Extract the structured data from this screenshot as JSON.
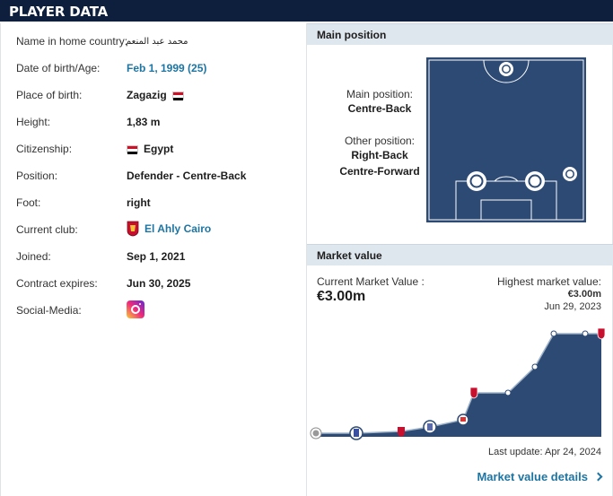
{
  "header": {
    "title": "PLAYER DATA"
  },
  "player": {
    "rows": [
      {
        "label": "Name in home country:",
        "value": "محمد عبد المنعم"
      },
      {
        "label": "Date of birth/Age:",
        "value": "Feb 1, 1999 (25)"
      },
      {
        "label": "Place of birth:",
        "value": "Zagazig"
      },
      {
        "label": "Height:",
        "value": "1,83 m"
      },
      {
        "label": "Citizenship:",
        "value": "Egypt"
      },
      {
        "label": "Position:",
        "value": "Defender - Centre-Back"
      },
      {
        "label": "Foot:",
        "value": "right"
      },
      {
        "label": "Current club:",
        "value": "El Ahly Cairo"
      },
      {
        "label": "Joined:",
        "value": "Sep 1, 2021"
      },
      {
        "label": "Contract expires:",
        "value": "Jun 30, 2025"
      },
      {
        "label": "Social-Media:",
        "value": ""
      }
    ]
  },
  "main_position": {
    "title": "Main position",
    "main_label": "Main position:",
    "main_value": "Centre-Back",
    "other_label": "Other position:",
    "other_values": [
      "Right-Back",
      "Centre-Forward"
    ]
  },
  "market_value": {
    "title": "Market value",
    "current_label": "Current Market Value :",
    "current_value": "€3.00m",
    "highest_label": "Highest market value:",
    "highest_value": "€3.00m",
    "highest_date": "Jun 29, 2023",
    "last_update": "Last update: Apr 24, 2024",
    "details_link": "Market value details"
  },
  "colors": {
    "header_bg": "#0d1f3c",
    "pitch": "#2c4a74",
    "chart_fill": "#2c4a74",
    "link": "#1d75a3",
    "section_bg": "#dfe7ee"
  },
  "icons": [
    "egypt-flag-icon",
    "club-crest-icon",
    "instagram-icon",
    "chevron-right-icon"
  ]
}
